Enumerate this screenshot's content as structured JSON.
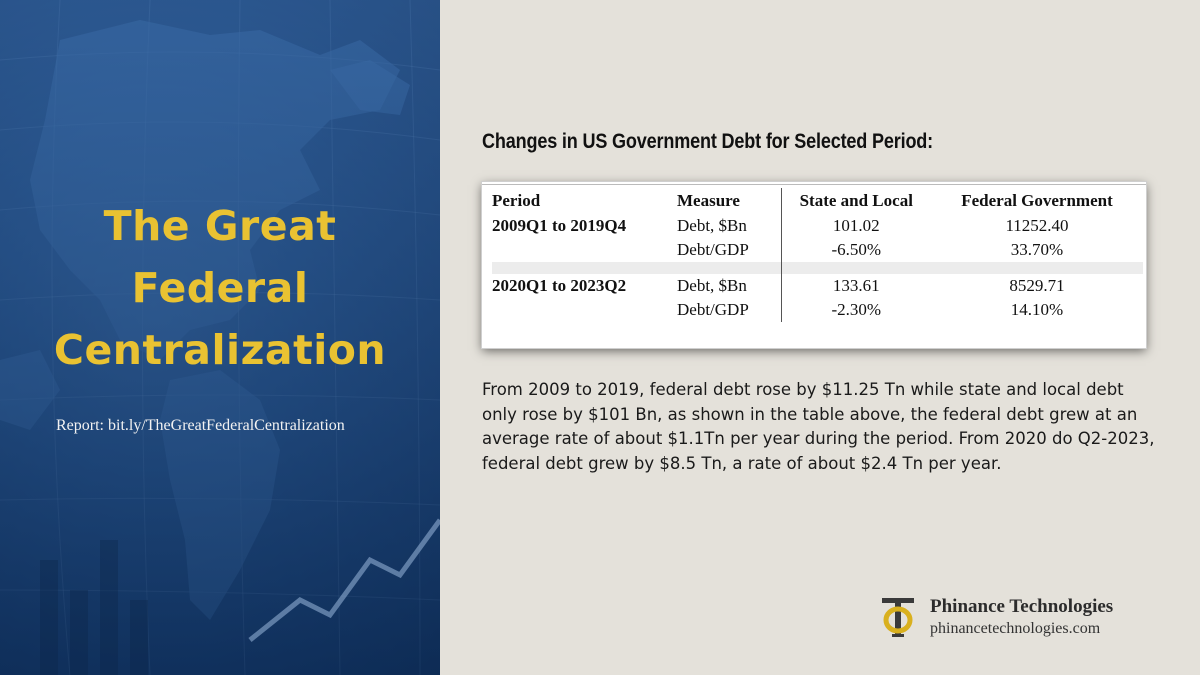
{
  "left_panel": {
    "title_lines": [
      "The Great",
      "Federal",
      "Centralization"
    ],
    "report": "Report: bit.ly/TheGreatFederalCentralization"
  },
  "heading": "Changes in US Government Debt for Selected Period:",
  "table": {
    "headers": [
      "Period",
      "Measure",
      "State and Local",
      "Federal Government"
    ],
    "groups": [
      {
        "period": "2009Q1 to 2019Q4",
        "rows": [
          {
            "measure": "Debt, $Bn",
            "state_local": "101.02",
            "federal": "11252.40"
          },
          {
            "measure": "Debt/GDP",
            "state_local": "-6.50%",
            "federal": "33.70%"
          }
        ]
      },
      {
        "period": "2020Q1 to 2023Q2",
        "rows": [
          {
            "measure": "Debt, $Bn",
            "state_local": "133.61",
            "federal": "8529.71"
          },
          {
            "measure": "Debt/GDP",
            "state_local": "-2.30%",
            "federal": "14.10%"
          }
        ]
      }
    ]
  },
  "paragraph": "From 2009 to 2019, federal debt rose by $11.25 Tn while state and local debt only rose by $101 Bn, as shown in the table above, the federal debt grew at an average rate of about $1.1Tn per year during the period. From 2020 do Q2-2023, federal debt grew by $8.5 Tn, a rate of about $2.4 Tn per year.",
  "brand": {
    "name": "Phinance Technologies",
    "website": "phinancetechnologies.com",
    "gold": "#d9b01e",
    "dark": "#2c2c2c"
  },
  "colors": {
    "title_yellow": "#e9c232",
    "panel_blue": "#1f4a82",
    "background": "#e4e1da"
  }
}
